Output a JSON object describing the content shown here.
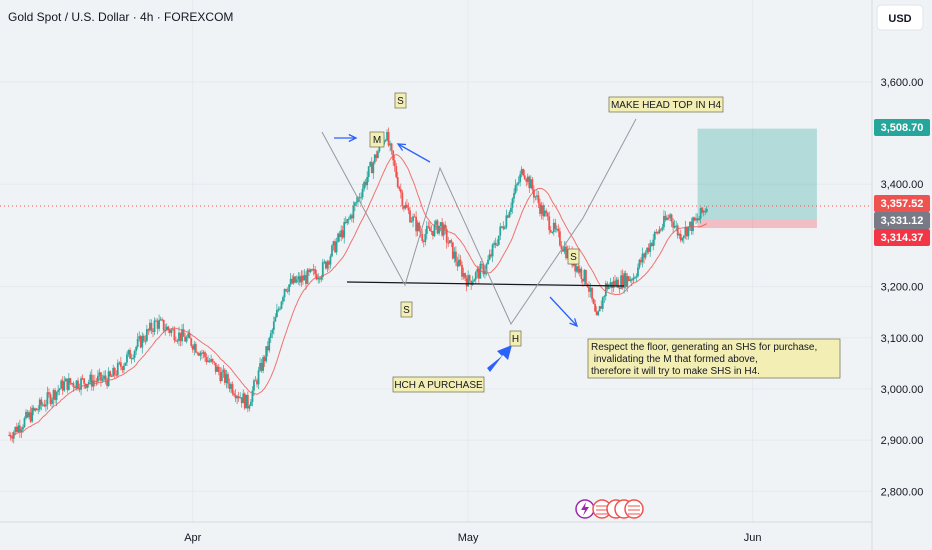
{
  "header": {
    "title": "Gold Spot / U.S. Dollar · 4h · FOREXCOM"
  },
  "currency_button": {
    "label": "USD"
  },
  "chart_data": {
    "type": "candlestick",
    "symbol": "Gold Spot / U.S. Dollar",
    "interval": "4h",
    "source": "FOREXCOM",
    "ylim": [
      2740,
      3760
    ],
    "y_ticks": [
      {
        "value": 2800,
        "label": "2,800.00"
      },
      {
        "value": 2900,
        "label": "2,900.00"
      },
      {
        "value": 3000,
        "label": "3,000.00"
      },
      {
        "value": 3100,
        "label": "3,100.00"
      },
      {
        "value": 3200,
        "label": "3,200.00"
      },
      {
        "value": 3400,
        "label": "3,400.00"
      },
      {
        "value": 3600,
        "label": "3,600.00"
      }
    ],
    "x_ticks": [
      "Apr",
      "May",
      "Jun"
    ],
    "price_tags": [
      {
        "value": 3508.7,
        "label": "3,508.70",
        "color": "#26a69a"
      },
      {
        "value": 3357.52,
        "label": "3,357.52",
        "color": "#ef5350"
      },
      {
        "value": 3331.12,
        "label": "3,331.12",
        "color": "#787b86"
      },
      {
        "value": 3314.37,
        "label": "3,314.37",
        "color": "#f23645"
      }
    ],
    "price_path": [
      {
        "date": "2025-03-12",
        "close": 2910
      },
      {
        "date": "2025-03-18",
        "close": 3010
      },
      {
        "date": "2025-03-23",
        "close": 3020
      },
      {
        "date": "2025-03-28",
        "close": 3130
      },
      {
        "date": "2025-04-01",
        "close": 3090
      },
      {
        "date": "2025-04-04",
        "close": 3030
      },
      {
        "date": "2025-04-07",
        "close": 2970
      },
      {
        "date": "2025-04-09",
        "close": 3070
      },
      {
        "date": "2025-04-11",
        "close": 3200
      },
      {
        "date": "2025-04-15",
        "close": 3230
      },
      {
        "date": "2025-04-18",
        "close": 3330
      },
      {
        "date": "2025-04-22",
        "close": 3500
      },
      {
        "date": "2025-04-24",
        "close": 3360
      },
      {
        "date": "2025-04-26",
        "close": 3300
      },
      {
        "date": "2025-04-28",
        "close": 3320
      },
      {
        "date": "2025-04-30",
        "close": 3240
      },
      {
        "date": "2025-05-01",
        "close": 3210
      },
      {
        "date": "2025-05-03",
        "close": 3240
      },
      {
        "date": "2025-05-05",
        "close": 3330
      },
      {
        "date": "2025-05-07",
        "close": 3430
      },
      {
        "date": "2025-05-09",
        "close": 3350
      },
      {
        "date": "2025-05-12",
        "close": 3260
      },
      {
        "date": "2025-05-14",
        "close": 3210
      },
      {
        "date": "2025-05-15",
        "close": 3130
      },
      {
        "date": "2025-05-16",
        "close": 3200
      },
      {
        "date": "2025-05-19",
        "close": 3220
      },
      {
        "date": "2025-05-21",
        "close": 3290
      },
      {
        "date": "2025-05-23",
        "close": 3340
      },
      {
        "date": "2025-05-24",
        "close": 3300
      },
      {
        "date": "2025-05-26",
        "close": 3330
      },
      {
        "date": "2025-05-27",
        "close": 3357.52
      }
    ],
    "neckline": {
      "value": 3205
    },
    "position": {
      "target": 3508.7,
      "entry": 3331.12,
      "stop": 3314.37
    },
    "annotations": [
      {
        "text": "S"
      },
      {
        "text": "M"
      },
      {
        "text": "MAKE HEAD TOP IN H4"
      },
      {
        "text": "S"
      },
      {
        "text": "H"
      },
      {
        "text": "S"
      },
      {
        "text": "HCH A PURCHASE"
      },
      {
        "text": "Respect the floor, generating an SHS for purchase, invalidating the M that formed above, therefore it will try to make SHS in H4."
      }
    ],
    "grid": true,
    "colors": {
      "up": "#26a69a",
      "down": "#ef5350",
      "ma": "#ef5350",
      "arrow": "#2962ff"
    }
  }
}
